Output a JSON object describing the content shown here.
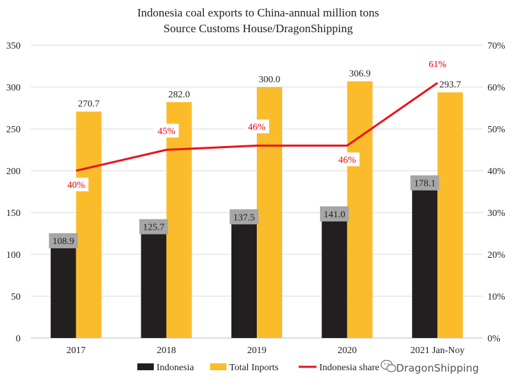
{
  "chart_data": {
    "type": "bar",
    "title": "Indonesia coal exports to China-annual million tons",
    "subtitle": "Source Customs House/DragonShipping",
    "categories": [
      "2017",
      "2018",
      "2019",
      "2020",
      "2021 Jan-Noy"
    ],
    "series": [
      {
        "name": "Indonesia",
        "kind": "bar",
        "color": "#231f20",
        "values": [
          108.9,
          125.7,
          137.5,
          141.0,
          178.1
        ],
        "labels": [
          "108.9",
          "125.7",
          "137.5",
          "141.0",
          "178.1"
        ]
      },
      {
        "name": "Total Inports",
        "kind": "bar",
        "color": "#fbbc2c",
        "values": [
          270.7,
          282.0,
          300.0,
          306.9,
          293.7
        ],
        "labels": [
          "270.7",
          "282.0",
          "300.0",
          "306.9",
          "293.7"
        ]
      },
      {
        "name": "Indonesia share",
        "kind": "line",
        "axis": "right",
        "color": "#e8141b",
        "values": [
          40,
          45,
          46,
          46,
          61
        ],
        "labels": [
          "40%",
          "45%",
          "46%",
          "46%",
          "61%"
        ]
      }
    ],
    "y_left": {
      "ticks": [
        "0",
        "50",
        "100",
        "150",
        "200",
        "250",
        "300",
        "350"
      ],
      "ylim": [
        0,
        350
      ]
    },
    "y_right": {
      "ticks": [
        "0%",
        "10%",
        "20%",
        "30%",
        "40%",
        "50%",
        "60%",
        "70%"
      ],
      "ylim": [
        0,
        70
      ]
    },
    "grid": true,
    "legend_position": "bottom"
  },
  "watermark": {
    "text": "DragonShipping",
    "icon": "wechat-icon"
  }
}
